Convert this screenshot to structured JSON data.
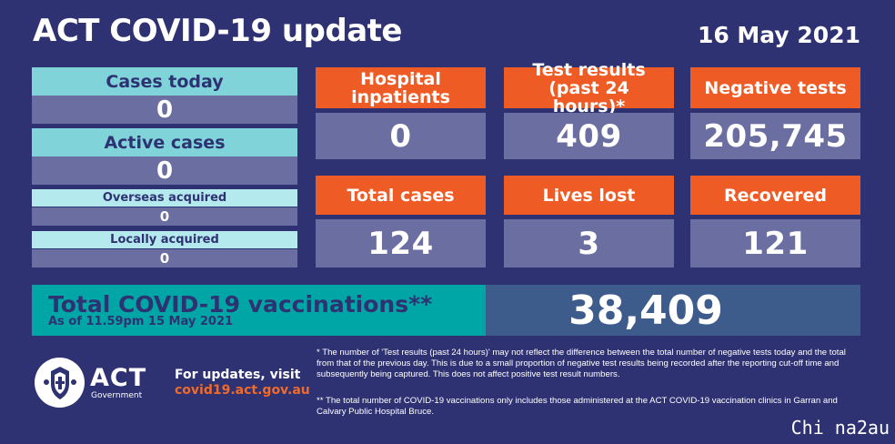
{
  "header": {
    "title": "ACT COVID-19 update",
    "date": "16 May 2021"
  },
  "left_panel": {
    "cases_today": {
      "label": "Cases today",
      "value": "0"
    },
    "active_cases": {
      "label": "Active cases",
      "value": "0"
    },
    "overseas_acquired": {
      "label": "Overseas acquired",
      "value": "0"
    },
    "locally_acquired": {
      "label": "Locally acquired",
      "value": "0"
    }
  },
  "tiles": {
    "hospital": {
      "label": "Hospital inpatients",
      "value": "0"
    },
    "test_results": {
      "label": "Test results (past 24 hours)*",
      "value": "409"
    },
    "negative_tests": {
      "label": "Negative tests",
      "value": "205,745"
    },
    "total_cases": {
      "label": "Total cases",
      "value": "124"
    },
    "lives_lost": {
      "label": "Lives lost",
      "value": "3"
    },
    "recovered": {
      "label": "Recovered",
      "value": "121"
    }
  },
  "vaccinations": {
    "title": "Total COVID-19 vaccinations**",
    "subtitle": "As of 11.59pm 15 May 2021",
    "value": "38,409"
  },
  "footer": {
    "logo_text": "ACT",
    "logo_sub": "Government",
    "updates_label": "For updates, visit",
    "updates_url": "covid19.act.gov.au",
    "note1": "* The number of 'Test results (past 24 hours)' may not reflect the difference between the total number of negative tests today and the total from that of the previous day. This is due to a small proportion of negative test results being recorded after the reporting cut-off time and subsequently being captured. This does not affect positive test result numbers.",
    "note2": "** The total number of COVID-19 vaccinations only includes those administered at the ACT COVID-19 vaccination clinics in Garran and Calvary Public Hospital Bruce."
  },
  "watermark": "Chi na2au",
  "colors": {
    "background": "#2f3272",
    "orange": "#ef5b24",
    "teal": "#7fd3d9",
    "tile": "#6b6ea0",
    "vax_teal": "#00a6a6",
    "vax_blue": "#3d5c8c"
  }
}
